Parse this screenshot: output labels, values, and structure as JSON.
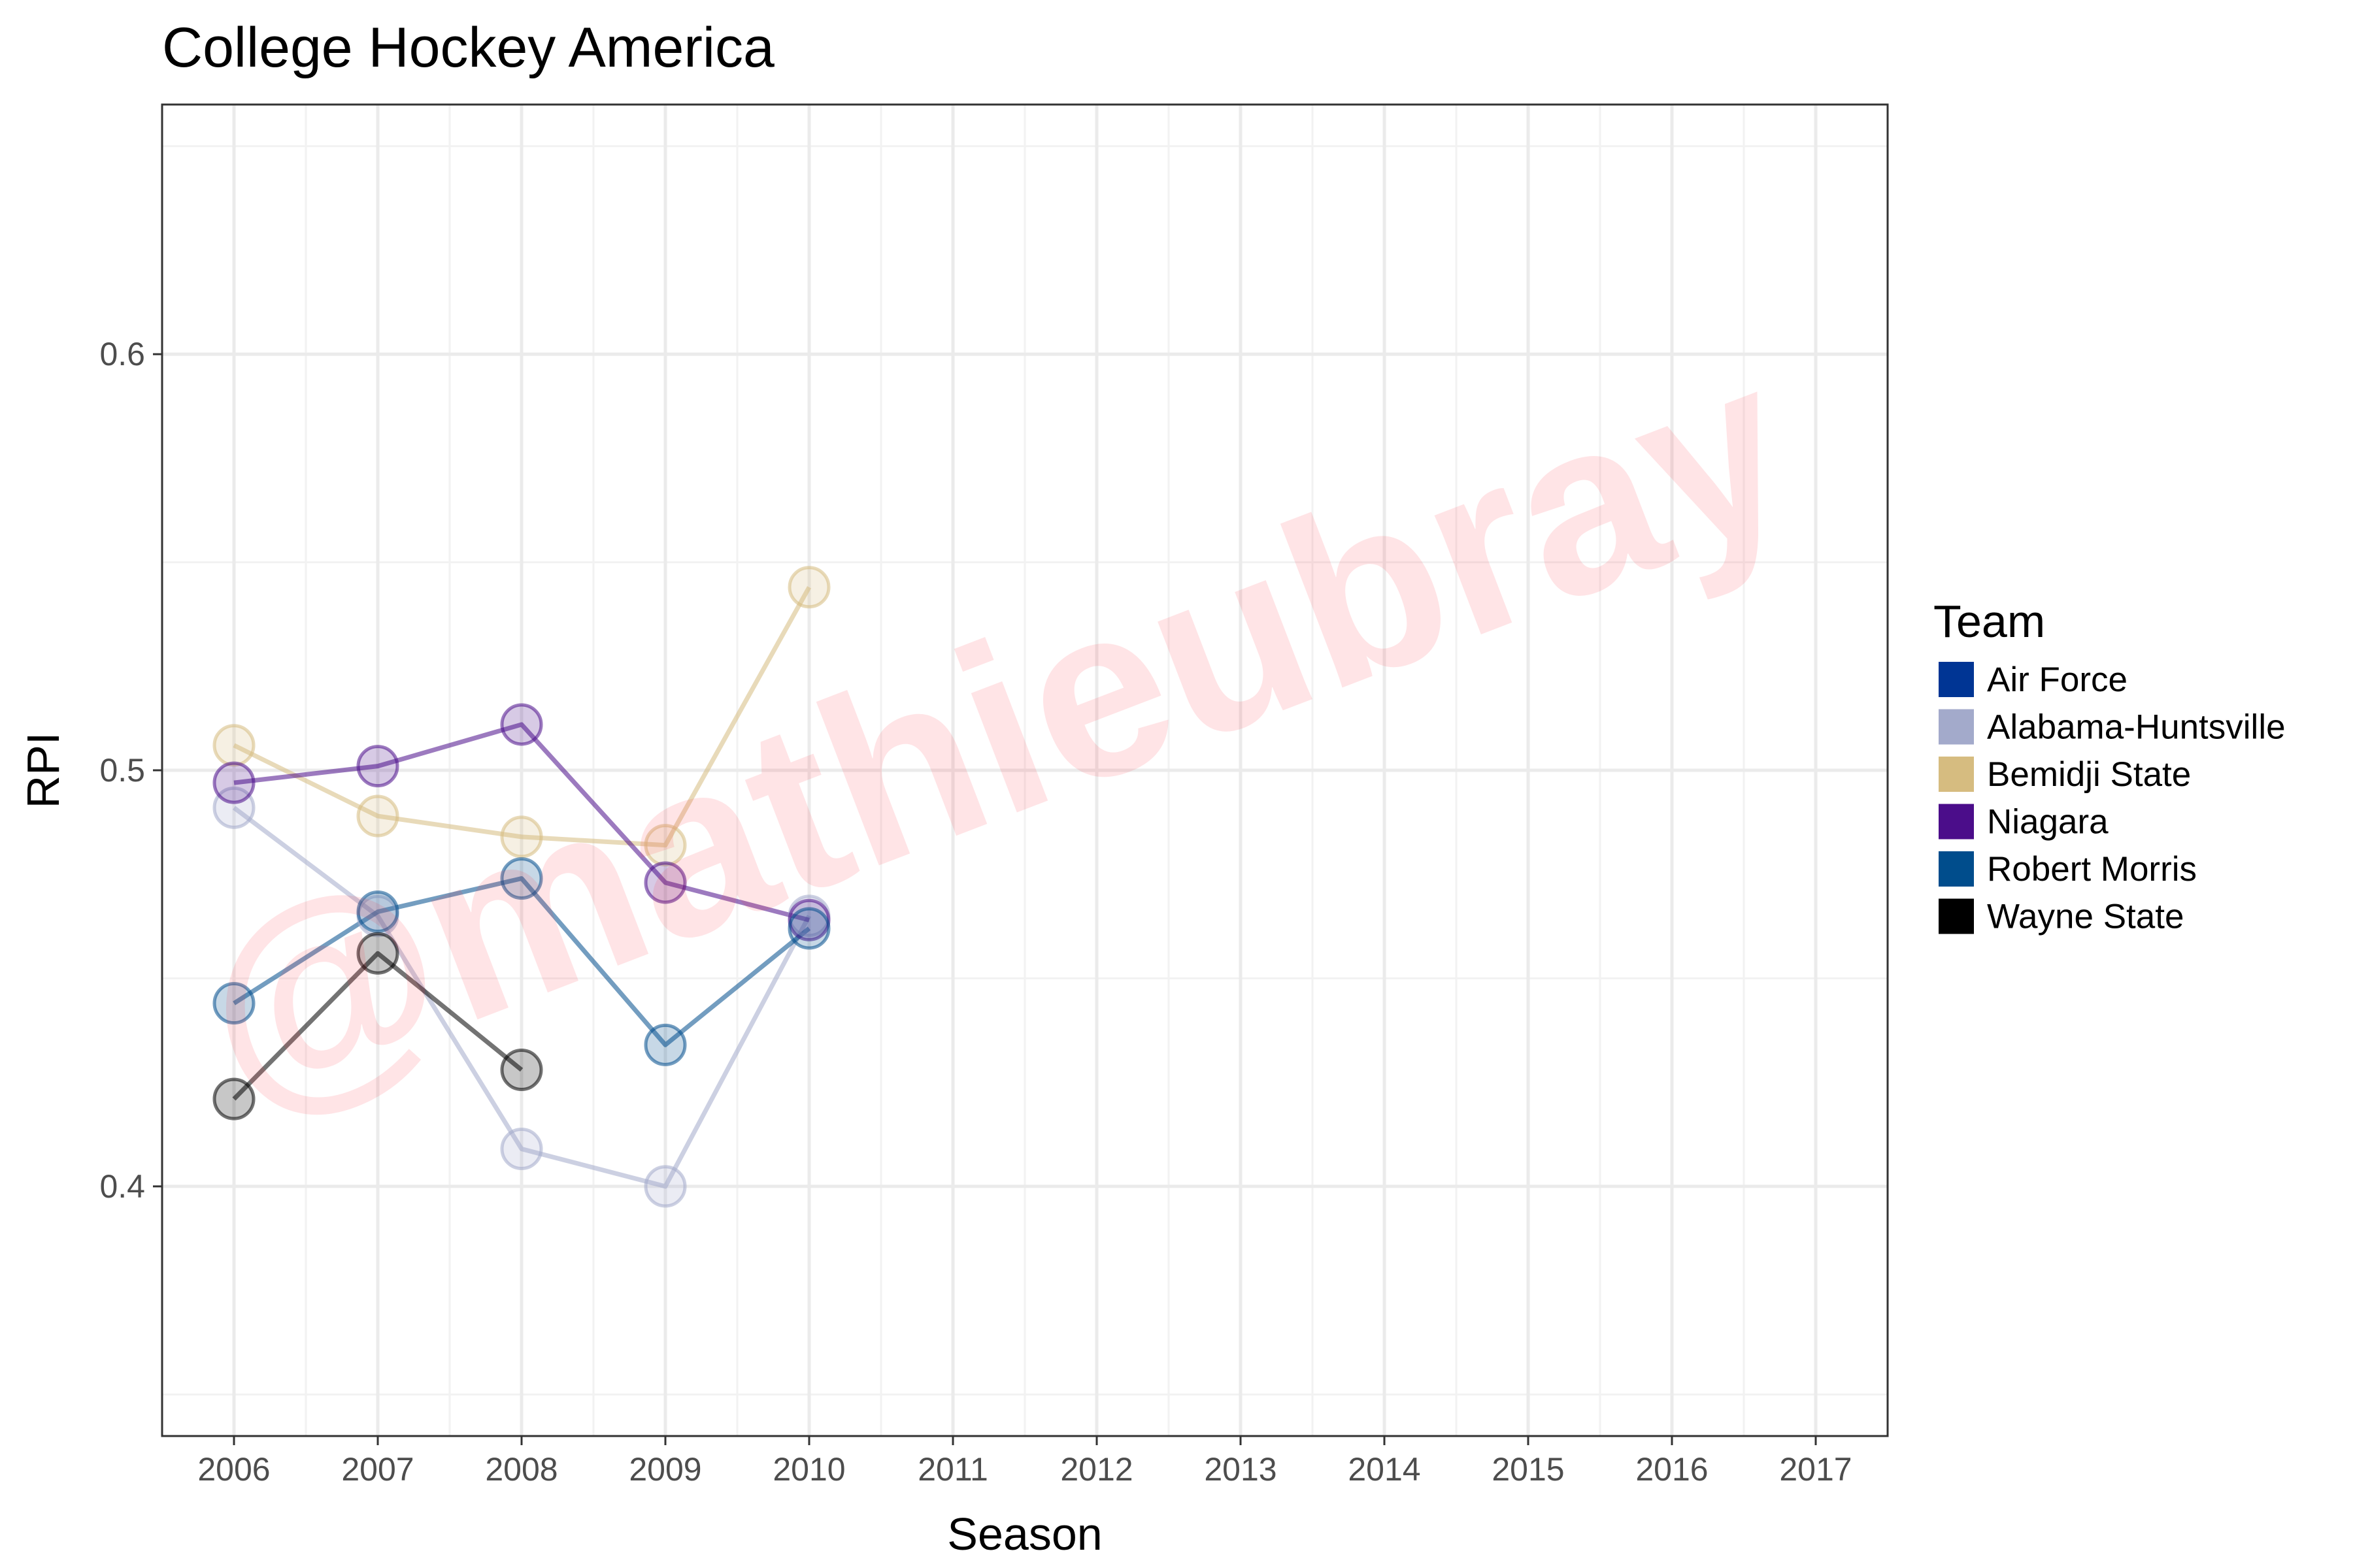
{
  "chart_data": {
    "type": "line",
    "title": "College Hockey America",
    "xlabel": "Season",
    "ylabel": "RPI",
    "x": [
      2006,
      2007,
      2008,
      2009,
      2010,
      2011,
      2012,
      2013,
      2014,
      2015,
      2016,
      2017
    ],
    "xlim": [
      2005.5,
      2017.5
    ],
    "ylim": [
      0.34,
      0.66
    ],
    "yticks": [
      0.4,
      0.5,
      0.6
    ],
    "ytick_labels": [
      "0.4",
      "0.5",
      "0.6"
    ],
    "grid": true,
    "legend_title": "Team",
    "legend_position": "right",
    "watermark": "@mathieubray",
    "series": [
      {
        "name": "Air Force",
        "color": "#003594",
        "x": [],
        "values": []
      },
      {
        "name": "Alabama-Huntsville",
        "color": "#a3aacb",
        "x": [
          2006,
          2007,
          2008,
          2009,
          2010
        ],
        "values": [
          0.491,
          0.465,
          0.409,
          0.4,
          0.465
        ]
      },
      {
        "name": "Bemidji State",
        "color": "#d6bc80",
        "x": [
          2006,
          2007,
          2008,
          2009,
          2010
        ],
        "values": [
          0.506,
          0.489,
          0.484,
          0.482,
          0.544
        ]
      },
      {
        "name": "Niagara",
        "color": "#4b0d8a",
        "x": [
          2006,
          2007,
          2008,
          2009,
          2010
        ],
        "values": [
          0.497,
          0.501,
          0.511,
          0.473,
          0.464
        ]
      },
      {
        "name": "Robert Morris",
        "color": "#004d8c",
        "x": [
          2006,
          2007,
          2008,
          2009,
          2010
        ],
        "values": [
          0.444,
          0.466,
          0.474,
          0.434,
          0.462
        ]
      },
      {
        "name": "Wayne State",
        "color": "#000000",
        "x": [
          2006,
          2007,
          2008
        ],
        "values": [
          0.421,
          0.456,
          0.428
        ]
      }
    ]
  }
}
